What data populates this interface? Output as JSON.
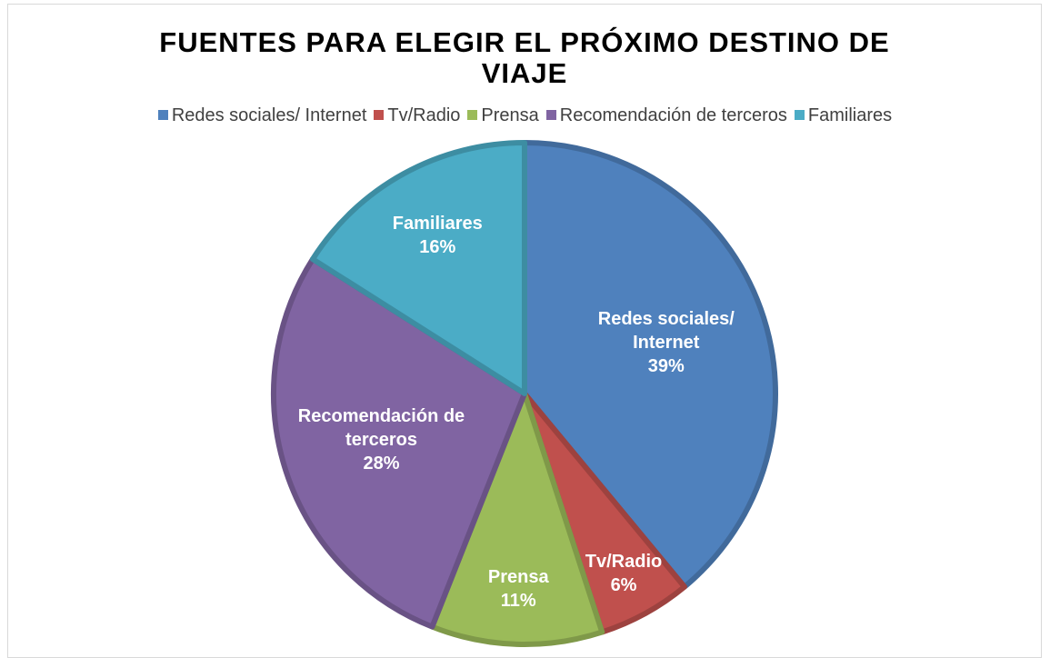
{
  "chart_data": {
    "type": "pie",
    "title": "FUENTES PARA ELEGIR EL PRÓXIMO DESTINO DE VIAJE",
    "categories": [
      "Redes sociales/ Internet",
      "Tv/Radio",
      "Prensa",
      "Recomendación de terceros",
      "Familiares"
    ],
    "values": [
      39,
      6,
      11,
      28,
      16
    ],
    "value_labels": [
      "39%",
      "6%",
      "11%",
      "28%",
      "16%"
    ],
    "colors": [
      "#4f81bd",
      "#c0504d",
      "#9bbb59",
      "#8064a2",
      "#4bacc6"
    ],
    "legend": "top"
  }
}
